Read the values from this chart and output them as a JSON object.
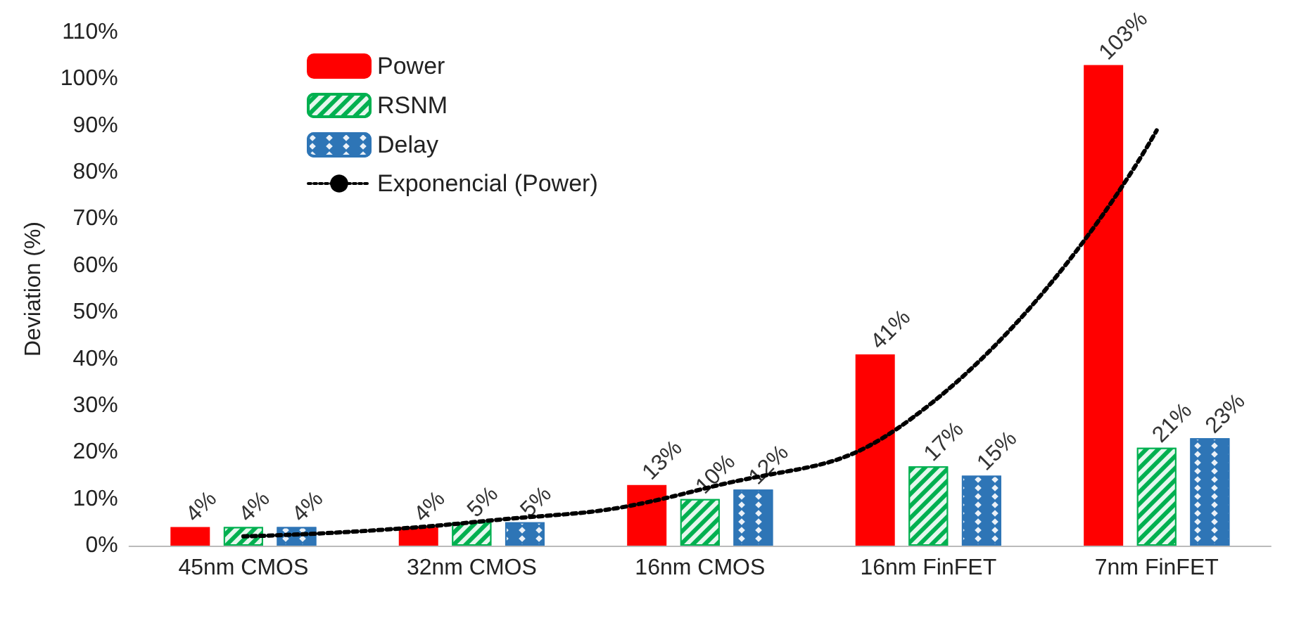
{
  "chart_data": {
    "type": "bar",
    "ylabel": "Deviation (%)",
    "categories": [
      "45nm CMOS",
      "32nm CMOS",
      "16nm CMOS",
      "16nm FinFET",
      "7nm FinFET"
    ],
    "series": [
      {
        "name": "Power",
        "color": "#ff0000",
        "values": [
          4,
          4,
          13,
          41,
          103
        ],
        "value_labels": [
          "4%",
          "4%",
          "13%",
          "41%",
          "103%"
        ]
      },
      {
        "name": "RSNM",
        "color": "#00b050",
        "values": [
          4,
          5,
          10,
          17,
          21
        ],
        "value_labels": [
          "4%",
          "5%",
          "10%",
          "17%",
          "21%"
        ]
      },
      {
        "name": "Delay",
        "color": "#2e75b6",
        "values": [
          4,
          5,
          12,
          15,
          23
        ],
        "value_labels": [
          "4%",
          "5%",
          "12%",
          "15%",
          "23%"
        ]
      },
      {
        "name": "Exponencial (Power)",
        "type": "line",
        "color": "#000000",
        "line_style": "dotted",
        "marker": "none",
        "values": [
          2,
          5,
          12,
          30,
          89
        ]
      }
    ],
    "ylim": [
      0,
      110
    ],
    "yticks": [
      {
        "value": 0,
        "label": "0%"
      },
      {
        "value": 10,
        "label": "10%"
      },
      {
        "value": 20,
        "label": "20%"
      },
      {
        "value": 30,
        "label": "30%"
      },
      {
        "value": 40,
        "label": "40%"
      },
      {
        "value": 50,
        "label": "50%"
      },
      {
        "value": 60,
        "label": "60%"
      },
      {
        "value": 70,
        "label": "70%"
      },
      {
        "value": 80,
        "label": "80%"
      },
      {
        "value": 90,
        "label": "90%"
      },
      {
        "value": 100,
        "label": "100%"
      },
      {
        "value": 110,
        "label": "110%"
      }
    ],
    "legend": "top left"
  }
}
